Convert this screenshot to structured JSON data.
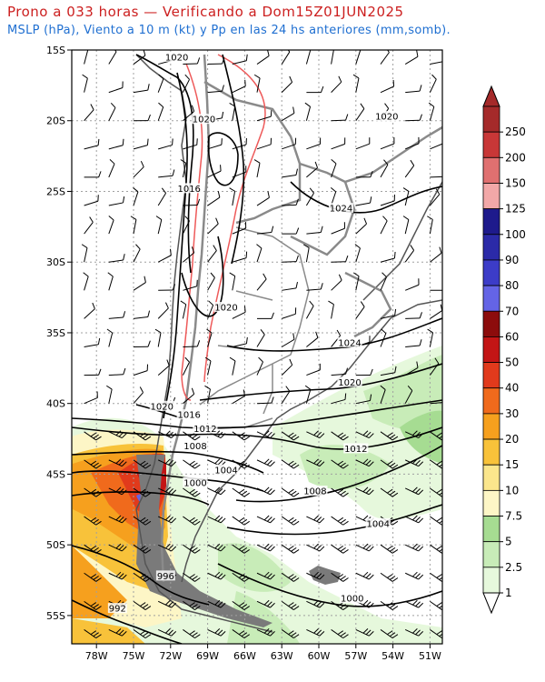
{
  "title": "Prono a 033 horas — Verificando a Dom15Z01JUN2025",
  "subtitle": "MSLP (hPa), Viento a 10 m (kt) y Pp en las 24 hs anteriores (mm,somb).",
  "lat_labels": [
    "15S",
    "20S",
    "25S",
    "30S",
    "35S",
    "40S",
    "45S",
    "50S",
    "55S"
  ],
  "lon_labels": [
    "78W",
    "75W",
    "72W",
    "69W",
    "66W",
    "63W",
    "60W",
    "57W",
    "54W",
    "51W"
  ],
  "isobar_labels": [
    {
      "text": "1020",
      "lon": -71.5,
      "lat": -15.5
    },
    {
      "text": "1020",
      "lon": -69.3,
      "lat": -19.9
    },
    {
      "text": "1020",
      "lon": -54.5,
      "lat": -19.7
    },
    {
      "text": "1016",
      "lon": -70.5,
      "lat": -24.8
    },
    {
      "text": "1024",
      "lon": -58.2,
      "lat": -26.2
    },
    {
      "text": "1020",
      "lon": -67.5,
      "lat": -33.2
    },
    {
      "text": "1024",
      "lon": -57.5,
      "lat": -35.7
    },
    {
      "text": "1020",
      "lon": -57.5,
      "lat": -38.5
    },
    {
      "text": "1020",
      "lon": -72.7,
      "lat": -40.2
    },
    {
      "text": "1016",
      "lon": -70.5,
      "lat": -40.8
    },
    {
      "text": "1012",
      "lon": -69.2,
      "lat": -41.8
    },
    {
      "text": "1008",
      "lon": -70.0,
      "lat": -43.0
    },
    {
      "text": "1012",
      "lon": -57.0,
      "lat": -43.2
    },
    {
      "text": "1004",
      "lon": -67.5,
      "lat": -44.7
    },
    {
      "text": "1000",
      "lon": -70.0,
      "lat": -45.6
    },
    {
      "text": "1008",
      "lon": -60.3,
      "lat": -46.2
    },
    {
      "text": "1004",
      "lon": -55.2,
      "lat": -48.5
    },
    {
      "text": "996",
      "lon": -72.4,
      "lat": -52.2
    },
    {
      "text": "1000",
      "lon": -57.3,
      "lat": -53.8
    },
    {
      "text": "992",
      "lon": -76.3,
      "lat": -54.5
    }
  ],
  "colorbar": {
    "labels": [
      "250",
      "200",
      "150",
      "125",
      "100",
      "90",
      "80",
      "70",
      "60",
      "50",
      "40",
      "30",
      "20",
      "15",
      "10",
      "7.5",
      "5",
      "2.5",
      "1"
    ],
    "colors": [
      "#a52a2a",
      "#c83737",
      "#e07070",
      "#f2a8a8",
      "#1e1a8c",
      "#2b2aa8",
      "#3c3cc8",
      "#6464e6",
      "#8c0c0c",
      "#c31515",
      "#e13a1c",
      "#f06a1c",
      "#f6a01e",
      "#f8c23a",
      "#fbe68c",
      "#fdf6c6",
      "#a6dc92",
      "#c8ecb8",
      "#e6f8dc"
    ],
    "tip_top_color": "#a52a2a",
    "tip_bottom_color": "#ffffff"
  },
  "chart_data": {
    "type": "map",
    "projection": "lat-lon",
    "lon_range": [
      -80,
      -50
    ],
    "lat_range": [
      -57,
      -15
    ],
    "grid": true,
    "fields": [
      "mslp_isobars_hPa",
      "wind_barbs_10m_kt",
      "precip_24h_mm_shaded"
    ],
    "isobar_values": [
      992,
      996,
      1000,
      1004,
      1008,
      1012,
      1016,
      1020,
      1024
    ],
    "precip_bins_mm": [
      1,
      2.5,
      5,
      7.5,
      10,
      15,
      20,
      30,
      40,
      50,
      60,
      70,
      80,
      90,
      100,
      125,
      150,
      200,
      250
    ]
  }
}
